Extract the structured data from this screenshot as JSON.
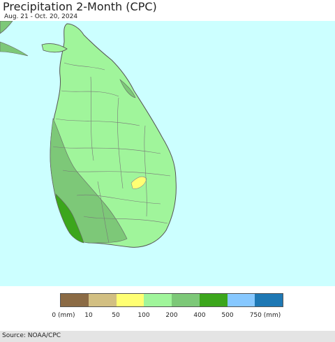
{
  "header": {
    "title": "Precipitation 2-Month (CPC)",
    "date_range": "Aug. 21 - Oct. 20, 2024"
  },
  "map": {
    "ocean_color": "#ccffff",
    "border_color": "#666666"
  },
  "legend": {
    "items": [
      {
        "label": "0 (mm)",
        "color": "#8b6b45"
      },
      {
        "label": "10",
        "color": "#d2bf82"
      },
      {
        "label": "50",
        "color": "#ffff73"
      },
      {
        "label": "100",
        "color": "#a0f59b"
      },
      {
        "label": "200",
        "color": "#7dc878"
      },
      {
        "label": "400",
        "color": "#3ca61c"
      },
      {
        "label": "500",
        "color": "#87c8ff"
      },
      {
        "label": "750 (mm)",
        "color": "#1e78b4"
      }
    ]
  },
  "footer": {
    "source": "Source: NOAA/CPC"
  }
}
